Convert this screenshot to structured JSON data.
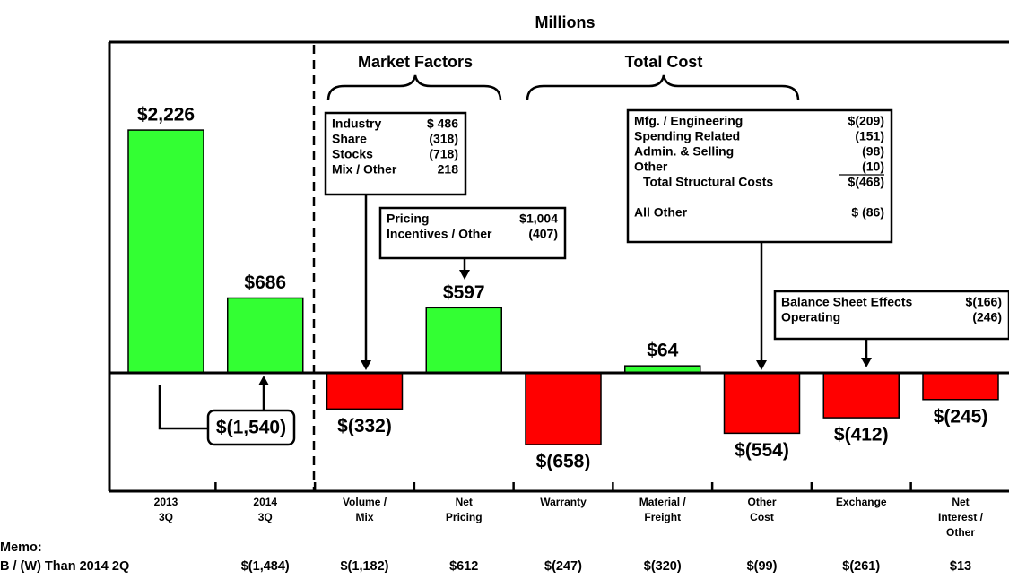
{
  "chart_data": {
    "type": "bar",
    "title": "Millions",
    "categories": [
      "2013\n3Q",
      "2014\n3Q",
      "Volume /\nMix",
      "Net\nPricing",
      "Warranty",
      "Material /\nFreight",
      "Other\nCost",
      "Exchange",
      "Net\nInterest /\nOther"
    ],
    "values": [
      2226,
      686,
      -332,
      597,
      -658,
      64,
      -554,
      -412,
      -245
    ],
    "value_labels": [
      "$2,226",
      "$686",
      "$(332)",
      "$597",
      "$(658)",
      "$64",
      "$(554)",
      "$(412)",
      "$(245)"
    ],
    "positive_color": "#33ff33",
    "negative_color": "#ff0000",
    "ylim": [
      -1085,
      3032
    ],
    "difference": {
      "value": -1540,
      "label": "$(1,540)"
    },
    "groups": [
      "Market Factors",
      "Total Cost"
    ],
    "boxes": [
      {
        "rows": [
          [
            "Industry",
            "$ 486"
          ],
          [
            "Share",
            "(318)"
          ],
          [
            "Stocks",
            "(718)"
          ],
          [
            "Mix / Other",
            "218"
          ]
        ]
      },
      {
        "rows": [
          [
            "Pricing",
            "$1,004"
          ],
          [
            "Incentives / Other",
            "(407)"
          ]
        ]
      },
      {
        "rows": [
          [
            "Mfg. / Engineering",
            "$(209)"
          ],
          [
            "Spending Related",
            "(151)"
          ],
          [
            "Admin. & Selling",
            "(98)"
          ],
          [
            "Other",
            "(10)"
          ],
          [
            "Total Structural Costs",
            "$(468)"
          ],
          [
            "All Other",
            "$ (86)"
          ]
        ]
      },
      {
        "rows": [
          [
            "Balance Sheet Effects",
            "$(166)"
          ],
          [
            "Operating",
            "(246)"
          ]
        ]
      }
    ],
    "memo": {
      "title": "Memo:",
      "label": "B / (W) Than 2014 2Q",
      "values": [
        null,
        -1484,
        -1182,
        612,
        -247,
        -320,
        -99,
        -261,
        13
      ],
      "value_labels": [
        null,
        "$(1,484)",
        "$(1,182)",
        "$612",
        "$(247)",
        "$(320)",
        "$(99)",
        "$(261)",
        "$13"
      ]
    }
  }
}
